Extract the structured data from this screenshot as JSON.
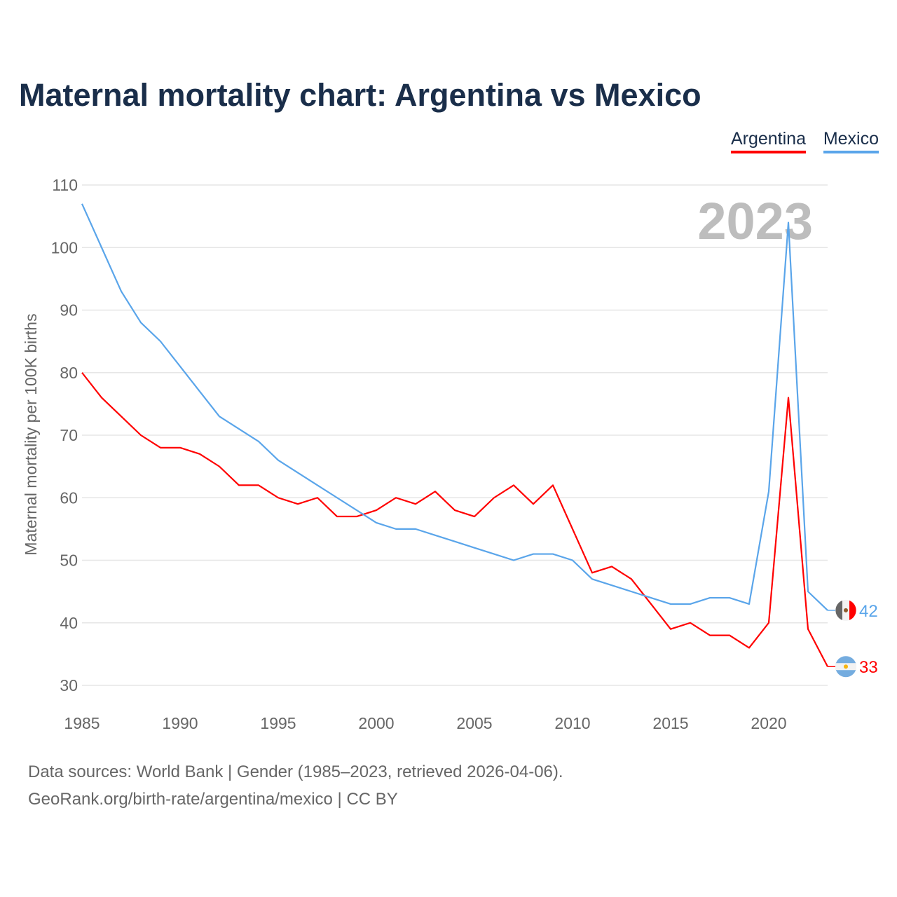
{
  "chart_data": {
    "type": "line",
    "title": "Maternal mortality chart: Argentina vs Mexico",
    "ylabel": "Maternal mortality per 100K births",
    "xlabel": "",
    "year_watermark": "2023",
    "xlim": [
      1985,
      2023
    ],
    "ylim": [
      30,
      110
    ],
    "x_ticks": [
      1985,
      1990,
      1995,
      2000,
      2005,
      2010,
      2015,
      2020
    ],
    "y_ticks": [
      30,
      40,
      50,
      60,
      70,
      80,
      90,
      100,
      110
    ],
    "grid": true,
    "legend_position": "top-right",
    "x": [
      1985,
      1986,
      1987,
      1988,
      1989,
      1990,
      1991,
      1992,
      1993,
      1994,
      1995,
      1996,
      1997,
      1998,
      1999,
      2000,
      2001,
      2002,
      2003,
      2004,
      2005,
      2006,
      2007,
      2008,
      2009,
      2010,
      2011,
      2012,
      2013,
      2014,
      2015,
      2016,
      2017,
      2018,
      2019,
      2020,
      2021,
      2022,
      2023
    ],
    "series": [
      {
        "name": "Argentina",
        "color": "#ff0000",
        "end_label": "33",
        "values": [
          80,
          76,
          73,
          70,
          68,
          68,
          67,
          65,
          62,
          62,
          60,
          59,
          60,
          57,
          57,
          58,
          60,
          59,
          61,
          58,
          57,
          60,
          62,
          59,
          62,
          55,
          48,
          49,
          47,
          43,
          39,
          40,
          38,
          38,
          36,
          40,
          76,
          39,
          33
        ]
      },
      {
        "name": "Mexico",
        "color": "#5aa5ea",
        "end_label": "42",
        "values": [
          107,
          100,
          93,
          88,
          85,
          81,
          77,
          73,
          71,
          69,
          66,
          64,
          62,
          60,
          58,
          56,
          55,
          55,
          54,
          53,
          52,
          51,
          50,
          51,
          51,
          50,
          47,
          46,
          45,
          44,
          43,
          43,
          44,
          44,
          43,
          61,
          104,
          45,
          42
        ]
      }
    ]
  },
  "footer": {
    "line1": "Data sources: World Bank | Gender (1985–2023, retrieved 2026-04-06).",
    "line2": "GeoRank.org/birth-rate/argentina/mexico | CC BY"
  }
}
